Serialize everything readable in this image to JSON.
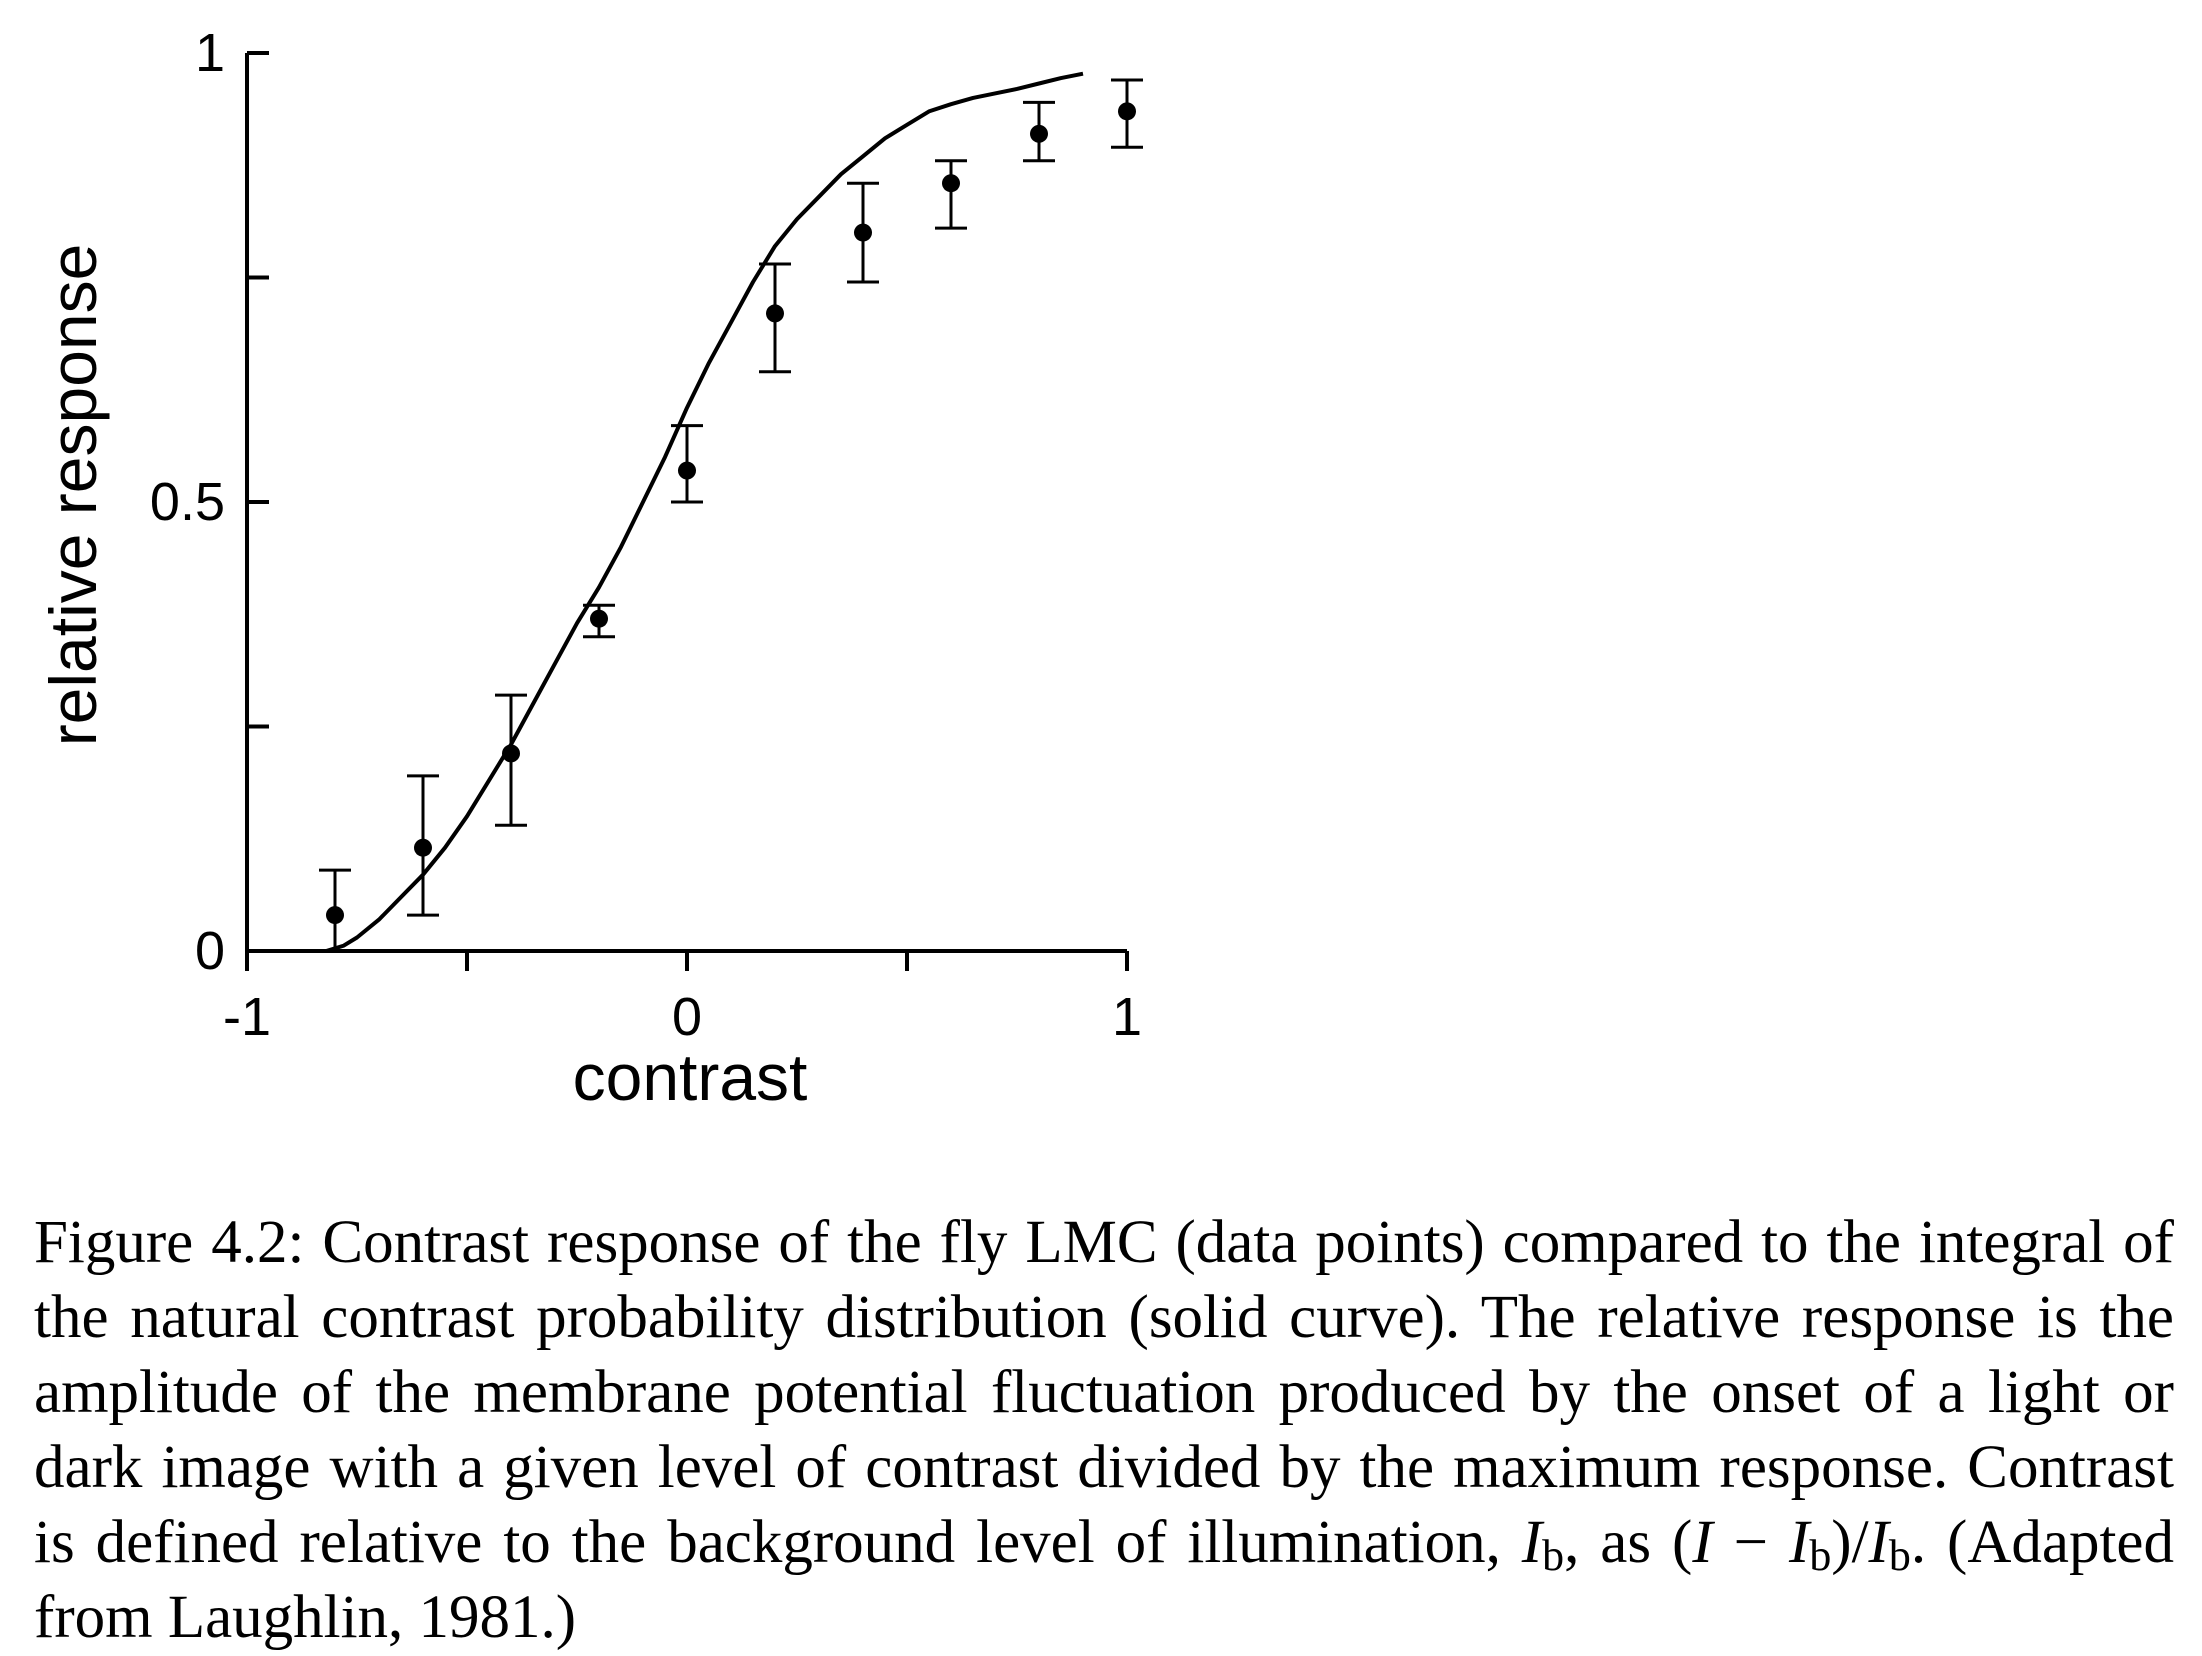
{
  "chart_data": {
    "type": "scatter",
    "xlabel": "contrast",
    "ylabel": "relative response",
    "xlim": [
      -1,
      1
    ],
    "ylim": [
      0,
      1
    ],
    "x_tick_labels": [
      "-1",
      "0",
      "1"
    ],
    "y_tick_labels": [
      "0",
      "0.5",
      "1"
    ],
    "x_minor_ticks": [
      -0.5,
      0.5
    ],
    "y_minor_ticks": [
      0.25,
      0.75
    ],
    "grid": false,
    "points": [
      {
        "x": -0.8,
        "y": 0.04,
        "err_low": 0.0,
        "err_high": 0.09
      },
      {
        "x": -0.6,
        "y": 0.115,
        "err_low": 0.04,
        "err_high": 0.195
      },
      {
        "x": -0.4,
        "y": 0.22,
        "err_low": 0.14,
        "err_high": 0.285
      },
      {
        "x": -0.2,
        "y": 0.37,
        "err_low": 0.35,
        "err_high": 0.385
      },
      {
        "x": 0.0,
        "y": 0.535,
        "err_low": 0.5,
        "err_high": 0.585
      },
      {
        "x": 0.2,
        "y": 0.71,
        "err_low": 0.645,
        "err_high": 0.765
      },
      {
        "x": 0.4,
        "y": 0.8,
        "err_low": 0.745,
        "err_high": 0.855
      },
      {
        "x": 0.6,
        "y": 0.855,
        "err_low": 0.805,
        "err_high": 0.88
      },
      {
        "x": 0.8,
        "y": 0.91,
        "err_low": 0.88,
        "err_high": 0.945
      },
      {
        "x": 1.0,
        "y": 0.935,
        "err_low": 0.895,
        "err_high": 0.97
      }
    ],
    "curve": {
      "x": [
        -0.9,
        -0.82,
        -0.78,
        -0.75,
        -0.7,
        -0.65,
        -0.6,
        -0.55,
        -0.5,
        -0.45,
        -0.4,
        -0.35,
        -0.3,
        -0.25,
        -0.2,
        -0.15,
        -0.1,
        -0.05,
        0.0,
        0.05,
        0.1,
        0.15,
        0.2,
        0.25,
        0.3,
        0.35,
        0.4,
        0.45,
        0.5,
        0.55,
        0.6,
        0.65,
        0.7,
        0.75,
        0.8,
        0.85,
        0.9
      ],
      "y": [
        0.0,
        0.0,
        0.006,
        0.015,
        0.035,
        0.06,
        0.085,
        0.115,
        0.15,
        0.19,
        0.23,
        0.275,
        0.32,
        0.365,
        0.405,
        0.45,
        0.5,
        0.55,
        0.605,
        0.655,
        0.7,
        0.745,
        0.785,
        0.815,
        0.84,
        0.865,
        0.885,
        0.905,
        0.92,
        0.935,
        0.943,
        0.95,
        0.955,
        0.96,
        0.966,
        0.972,
        0.977
      ]
    }
  },
  "caption": {
    "label": "Figure 4.2:",
    "text_1": "Contrast response of the fly LMC (data points) compared to the integral of the natural contrast probability distribution (solid curve). The relative response is the amplitude of the membrane potential fluctuation produced by the onset of a light or dark image with a given level of contrast divided by the maximum response. Contrast is defined relative to the background level of illumination, ",
    "sym_I": "I",
    "sub_b": "b",
    "text_2": ", as (",
    "text_minus": " − ",
    "text_slash": ")/",
    "text_3": ". (Adapted from Laughlin, 1981.)"
  }
}
